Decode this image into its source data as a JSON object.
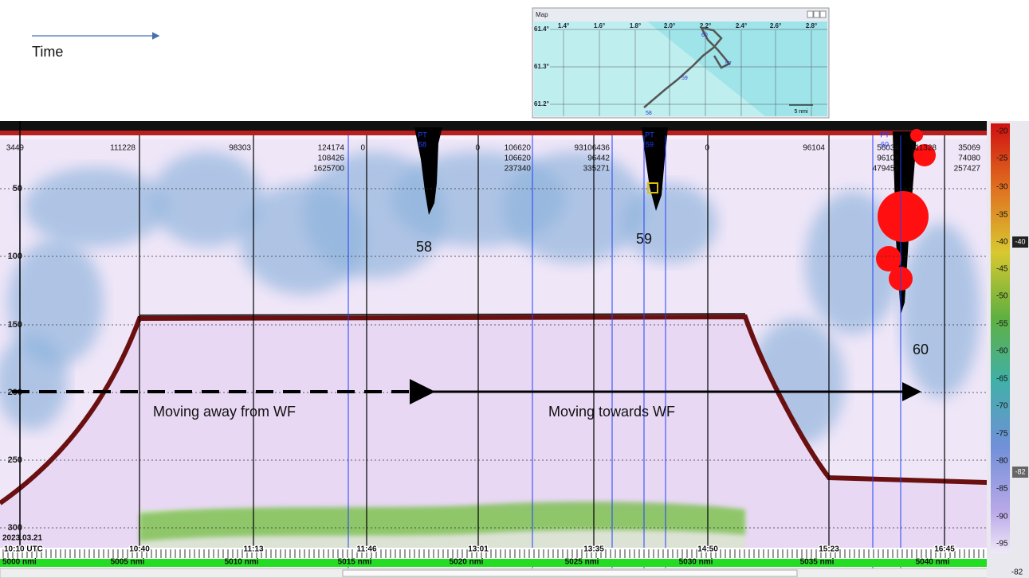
{
  "annotations": {
    "time": "Time",
    "stations": [
      "58",
      "59",
      "60"
    ],
    "away": "Moving away from WF",
    "towards": "Moving towards WF"
  },
  "map": {
    "title": "Map",
    "longitudes": [
      "1.4°",
      "1.6°",
      "1.8°",
      "2.0°",
      "2.2°",
      "2.4°",
      "2.6°",
      "2.8°"
    ],
    "latitudes": [
      "61.4°",
      "61.3°",
      "61.2°"
    ],
    "stations": [
      "57",
      "58",
      "59",
      "60"
    ],
    "scale": "5 nmi"
  },
  "echogram": {
    "depths": [
      "50",
      "100",
      "150",
      "200",
      "250",
      "300"
    ],
    "date": "2023.03.21",
    "times": [
      "10:10 UTC",
      "10:40",
      "11:13",
      "11:46",
      "13:01",
      "13:35",
      "14:50",
      "15:23",
      "16:45"
    ],
    "distances": [
      "5000 nmi",
      "5005 nmi",
      "5010 nmi",
      "5015 nmi",
      "5020 nmi",
      "5025 nmi",
      "5030 nmi",
      "5035 nmi",
      "5040 nmi"
    ],
    "top_labels": [
      "3449",
      "111228",
      "98303",
      "124174",
      "108426",
      "1625700",
      "0",
      "0",
      "106620",
      "106620",
      "237340",
      "93106436",
      "96442",
      "335271",
      "0",
      "96104",
      "56034",
      "96104",
      "479453",
      "111328",
      "35069",
      "74080",
      "257427"
    ],
    "markers": [
      {
        "code": "PT",
        "id": "58"
      },
      {
        "code": "PT",
        "id": "59"
      },
      {
        "code": "PT",
        "id": "60"
      }
    ]
  },
  "color_scale": {
    "labels": [
      "-20",
      "-25",
      "-30",
      "-35",
      "-40",
      "-45",
      "-50",
      "-55",
      "-60",
      "-65",
      "-70",
      "-75",
      "-80",
      "-85",
      "-90",
      "-95"
    ],
    "threshold": "-40",
    "minimum": "-82",
    "bottom": "-82"
  }
}
